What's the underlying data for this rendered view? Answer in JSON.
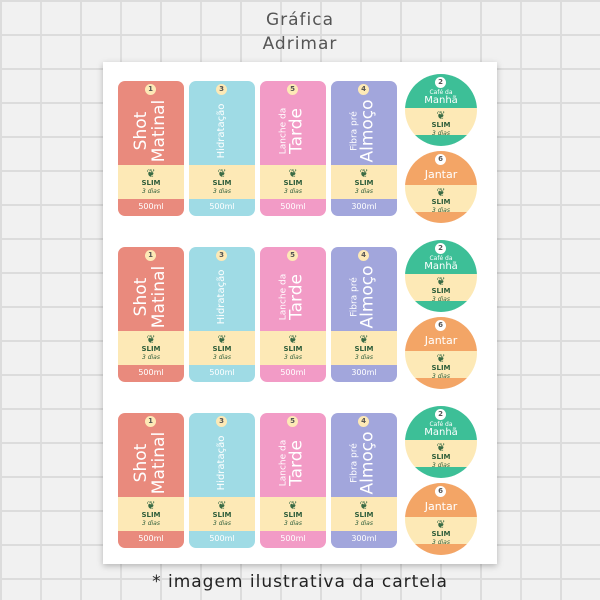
{
  "header": {
    "line1": "Gráfica",
    "line2": "Adrimar"
  },
  "footer": "* imagem ilustrativa da cartela",
  "colors": {
    "salmon": "#e98a7d",
    "sky": "#9fdbe5",
    "pink": "#f29bc6",
    "lavender": "#a2a6dc",
    "cream": "#fde9b6",
    "teal": "#3dbf97",
    "orange": "#f3a566"
  },
  "logo": {
    "icon": "leaf-icon",
    "name": "SLIM",
    "sub": "3 dias"
  },
  "labels": [
    {
      "num": "1",
      "small": "",
      "big": "Shot",
      "big2": "Matinal",
      "volume": "500ml"
    },
    {
      "num": "3",
      "small": "Hidratação",
      "big": "",
      "big2": "",
      "volume": "500ml"
    },
    {
      "num": "5",
      "small": "Lanche da",
      "big": "Tarde",
      "big2": "",
      "volume": "500ml"
    },
    {
      "num": "4",
      "small": "Fibra pré",
      "big": "Almoço",
      "big2": "",
      "volume": "300ml"
    }
  ],
  "circles": [
    {
      "num": "2",
      "small": "Café da",
      "big": "Manhã"
    },
    {
      "num": "6",
      "small": "",
      "big": "Jantar"
    }
  ]
}
